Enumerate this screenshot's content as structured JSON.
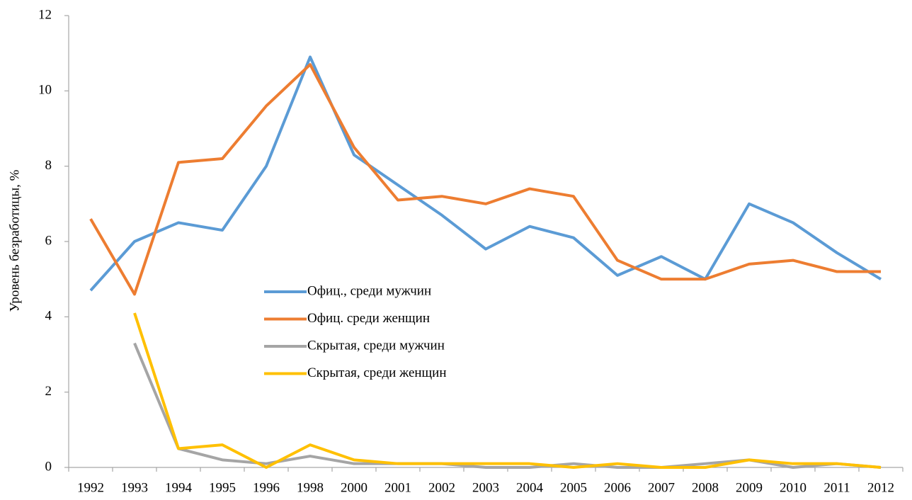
{
  "chart_data": {
    "type": "line",
    "y_label": "Уровень безработицы, %",
    "categories": [
      "1992",
      "1993",
      "1994",
      "1995",
      "1996",
      "1998",
      "2000",
      "2001",
      "2002",
      "2003",
      "2004",
      "2005",
      "2006",
      "2007",
      "2008",
      "2009",
      "2010",
      "2011",
      "2012"
    ],
    "series": [
      {
        "name": "Офиц., среди мужчин",
        "color": "#5b9bd5",
        "values": [
          4.7,
          6.0,
          6.5,
          6.3,
          8.0,
          10.9,
          8.3,
          7.5,
          6.7,
          5.8,
          6.4,
          6.1,
          5.1,
          5.6,
          5.0,
          7.0,
          6.5,
          5.7,
          5.0
        ]
      },
      {
        "name": "Офиц. среди женщин",
        "color": "#ed7d31",
        "values": [
          6.6,
          4.6,
          8.1,
          8.2,
          9.6,
          10.7,
          8.5,
          7.1,
          7.2,
          7.0,
          7.4,
          7.2,
          5.5,
          5.0,
          5.0,
          5.4,
          5.5,
          5.2,
          5.2
        ]
      },
      {
        "name": "Скрытая, среди мужчин",
        "color": "#a5a5a5",
        "values": [
          null,
          3.3,
          0.5,
          0.2,
          0.1,
          0.3,
          0.1,
          0.1,
          0.1,
          0.0,
          0.0,
          0.1,
          0.0,
          0.0,
          0.1,
          0.2,
          0.0,
          0.1,
          0.0
        ]
      },
      {
        "name": "Скрытая, среди женщин",
        "color": "#ffc000",
        "values": [
          null,
          4.1,
          0.5,
          0.6,
          0.0,
          0.6,
          0.2,
          0.1,
          0.1,
          0.1,
          0.1,
          0.0,
          0.1,
          0.0,
          0.0,
          0.2,
          0.1,
          0.1,
          0.0
        ]
      }
    ],
    "ylim": [
      0,
      12
    ],
    "yticks": [
      0,
      2,
      4,
      6,
      8,
      10,
      12
    ],
    "grid": false
  }
}
